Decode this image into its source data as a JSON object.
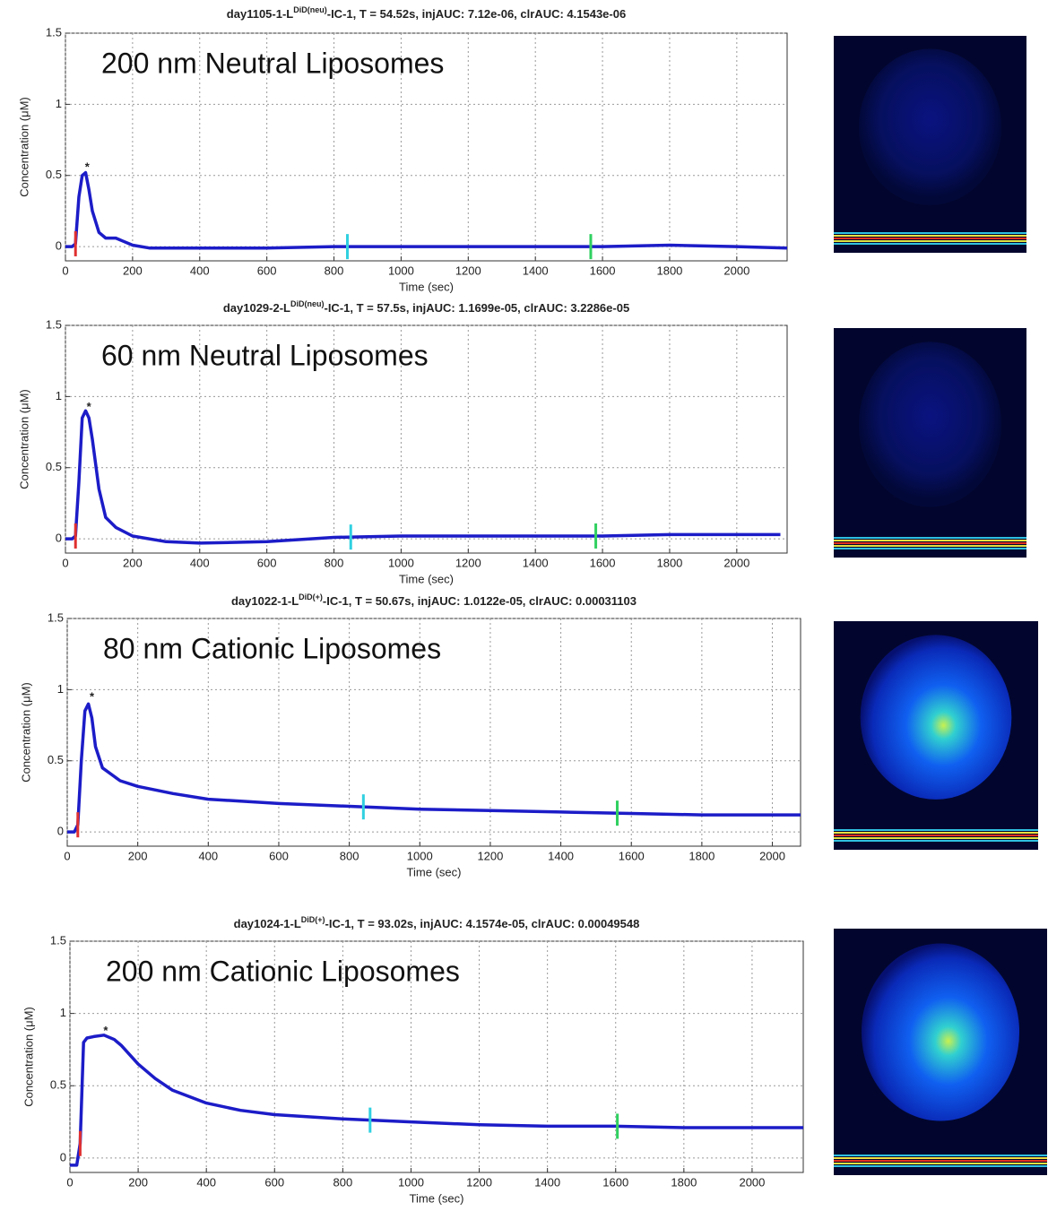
{
  "chart_data": [
    {
      "type": "line",
      "title": {
        "base": "day1105-1-L",
        "sup": "DiD(neu)",
        "rest": "-IC-1, T = 54.52s, injAUC: 7.12e-06, clrAUC: 4.1543e-06"
      },
      "annotation": "200 nm Neutral Liposomes",
      "xlabel": "Time (sec)",
      "ylabel": "Concentration (μM)",
      "xlim": [
        0,
        2150
      ],
      "ylim": [
        -0.1,
        1.5
      ],
      "xticks": [
        0,
        200,
        400,
        600,
        800,
        1000,
        1200,
        1400,
        1600,
        1800,
        2000
      ],
      "yticks": [
        0,
        0.5,
        1,
        1.5
      ],
      "grid": true,
      "x": [
        0,
        20,
        30,
        40,
        50,
        60,
        70,
        80,
        100,
        120,
        150,
        170,
        200,
        250,
        300,
        400,
        600,
        800,
        1000,
        1200,
        1400,
        1600,
        1800,
        2000,
        2150
      ],
      "series": [
        {
          "color": "#1c1cc8",
          "values": [
            0,
            0,
            0.02,
            0.35,
            0.5,
            0.52,
            0.4,
            0.25,
            0.1,
            0.06,
            0.06,
            0.04,
            0.01,
            -0.01,
            -0.01,
            -0.01,
            -0.01,
            0,
            0,
            0,
            0,
            0,
            0.01,
            0,
            -0.01
          ]
        }
      ],
      "peak_marker": {
        "text": "*",
        "x": 65,
        "y": 0.58
      },
      "event_markers": [
        {
          "x": 30,
          "color": "#e03030"
        },
        {
          "x": 840,
          "color": "#30d0e0"
        },
        {
          "x": 1565,
          "color": "#30d060"
        }
      ]
    },
    {
      "type": "line",
      "title": {
        "base": "day1029-2-L",
        "sup": "DiD(neu)",
        "rest": "-IC-1, T = 57.5s, injAUC: 1.1699e-05, clrAUC: 3.2286e-05"
      },
      "annotation": "60 nm Neutral Liposomes",
      "xlabel": "Time (sec)",
      "ylabel": "Concentration (μM)",
      "xlim": [
        0,
        2150
      ],
      "ylim": [
        -0.1,
        1.5
      ],
      "xticks": [
        0,
        200,
        400,
        600,
        800,
        1000,
        1200,
        1400,
        1600,
        1800,
        2000
      ],
      "yticks": [
        0,
        0.5,
        1,
        1.5
      ],
      "grid": true,
      "x": [
        0,
        20,
        30,
        40,
        50,
        60,
        70,
        80,
        100,
        120,
        150,
        200,
        300,
        400,
        600,
        800,
        1000,
        1200,
        1400,
        1600,
        1800,
        2000,
        2130
      ],
      "series": [
        {
          "color": "#1c1cc8",
          "values": [
            0,
            0,
            0.02,
            0.4,
            0.85,
            0.9,
            0.85,
            0.7,
            0.35,
            0.15,
            0.08,
            0.02,
            -0.02,
            -0.03,
            -0.02,
            0.01,
            0.02,
            0.02,
            0.02,
            0.02,
            0.03,
            0.03,
            0.03
          ]
        }
      ],
      "peak_marker": {
        "text": "*",
        "x": 70,
        "y": 0.95
      },
      "event_markers": [
        {
          "x": 30,
          "color": "#e03030"
        },
        {
          "x": 850,
          "color": "#30d0e0"
        },
        {
          "x": 1580,
          "color": "#30d060"
        }
      ]
    },
    {
      "type": "line",
      "title": {
        "base": "day1022-1-L",
        "sup": "DiD(+)",
        "rest": "-IC-1, T = 50.67s, injAUC: 1.0122e-05, clrAUC: 0.00031103"
      },
      "annotation": "80 nm Cationic Liposomes",
      "xlabel": "Time (sec)",
      "ylabel": "Concentration (μM)",
      "xlim": [
        0,
        2080
      ],
      "ylim": [
        -0.1,
        1.5
      ],
      "xticks": [
        0,
        200,
        400,
        600,
        800,
        1000,
        1200,
        1400,
        1600,
        1800,
        2000
      ],
      "yticks": [
        0,
        0.5,
        1,
        1.5
      ],
      "grid": true,
      "x": [
        0,
        20,
        30,
        40,
        50,
        60,
        70,
        80,
        100,
        150,
        200,
        300,
        400,
        600,
        800,
        1000,
        1200,
        1400,
        1600,
        1800,
        2000,
        2080
      ],
      "series": [
        {
          "color": "#1c1cc8",
          "values": [
            0,
            0,
            0.05,
            0.5,
            0.85,
            0.9,
            0.8,
            0.6,
            0.45,
            0.36,
            0.32,
            0.27,
            0.23,
            0.2,
            0.18,
            0.16,
            0.15,
            0.14,
            0.13,
            0.12,
            0.12,
            0.12
          ]
        }
      ],
      "peak_marker": {
        "text": "*",
        "x": 70,
        "y": 0.97
      },
      "event_markers": [
        {
          "x": 30,
          "color": "#e03030"
        },
        {
          "x": 840,
          "color": "#30d0e0"
        },
        {
          "x": 1560,
          "color": "#30d060"
        }
      ]
    },
    {
      "type": "line",
      "title": {
        "base": "day1024-1-L",
        "sup": "DiD(+)",
        "rest": "-IC-1, T = 93.02s, injAUC: 4.1574e-05, clrAUC: 0.00049548"
      },
      "annotation": "200 nm Cationic Liposomes",
      "xlabel": "Time (sec)",
      "ylabel": "Concentration (μM)",
      "xlim": [
        0,
        2150
      ],
      "ylim": [
        -0.1,
        1.5
      ],
      "xticks": [
        0,
        200,
        400,
        600,
        800,
        1000,
        1200,
        1400,
        1600,
        1800,
        2000
      ],
      "yticks": [
        0,
        0.5,
        1,
        1.5
      ],
      "grid": true,
      "x": [
        0,
        20,
        30,
        40,
        50,
        70,
        100,
        130,
        150,
        200,
        250,
        300,
        400,
        500,
        600,
        800,
        1000,
        1200,
        1400,
        1600,
        1800,
        2000,
        2150
      ],
      "series": [
        {
          "color": "#1c1cc8",
          "values": [
            -0.05,
            -0.05,
            0.1,
            0.8,
            0.83,
            0.84,
            0.85,
            0.82,
            0.78,
            0.65,
            0.55,
            0.47,
            0.38,
            0.33,
            0.3,
            0.27,
            0.25,
            0.23,
            0.22,
            0.22,
            0.21,
            0.21,
            0.21
          ]
        }
      ],
      "peak_marker": {
        "text": "*",
        "x": 105,
        "y": 0.9
      },
      "event_markers": [
        {
          "x": 30,
          "color": "#e03030"
        },
        {
          "x": 880,
          "color": "#30d0e0"
        },
        {
          "x": 1605,
          "color": "#30d060"
        }
      ]
    }
  ]
}
